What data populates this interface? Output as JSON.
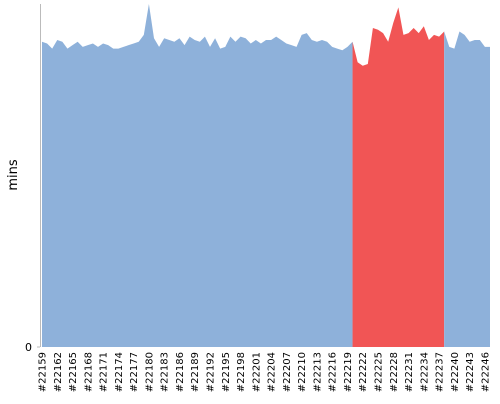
{
  "chart_data": {
    "type": "area",
    "ylabel": "mins",
    "categories": [
      "#22159",
      null,
      null,
      "#22162",
      null,
      null,
      "#22165",
      null,
      null,
      "#22168",
      null,
      null,
      "#22171",
      null,
      null,
      "#22174",
      null,
      null,
      "#22177",
      null,
      null,
      "#22180",
      null,
      null,
      "#22183",
      null,
      null,
      "#22186",
      null,
      null,
      "#22189",
      null,
      null,
      "#22192",
      null,
      null,
      "#22195",
      null,
      null,
      "#22198",
      null,
      null,
      "#22201",
      null,
      null,
      "#22204",
      null,
      null,
      "#22207",
      null,
      null,
      "#22210",
      null,
      null,
      "#22213",
      null,
      null,
      "#22216",
      null,
      null,
      "#22219",
      null,
      null,
      "#22222",
      null,
      null,
      "#22225",
      null,
      null,
      "#22228",
      null,
      null,
      "#22231",
      null,
      null,
      "#22234",
      null,
      null,
      "#22237",
      null,
      null,
      "#22240",
      null,
      null,
      "#22243",
      null,
      null,
      "#22246",
      null
    ],
    "values": [
      89,
      88.5,
      87,
      89.5,
      89,
      87,
      88,
      89,
      87.5,
      88,
      88.5,
      87.5,
      88.5,
      88,
      87,
      87,
      87.5,
      88,
      88.5,
      89,
      91,
      100,
      90,
      87.5,
      90,
      89.5,
      89,
      90,
      88,
      90.5,
      89.5,
      89,
      90.5,
      87.5,
      90,
      87,
      87.5,
      90.5,
      89,
      90.5,
      90,
      88.5,
      89.5,
      88.5,
      89.5,
      89.5,
      90.5,
      89.5,
      88.5,
      88,
      87.5,
      91,
      91.5,
      89.5,
      89,
      89.5,
      89,
      87.5,
      87,
      86.5,
      87.5,
      89,
      83,
      82,
      82.5,
      93,
      92.5,
      91.5,
      89,
      94.5,
      99,
      91,
      91.5,
      93,
      91.5,
      93.5,
      89.5,
      91,
      90.5,
      92,
      87.5,
      87,
      92,
      91,
      89,
      89.5,
      89.5,
      87.5,
      87.5
    ],
    "colors": [
      "#8eb1da",
      "#8eb1da",
      "#8eb1da",
      "#8eb1da",
      "#8eb1da",
      "#8eb1da",
      "#8eb1da",
      "#8eb1da",
      "#8eb1da",
      "#8eb1da",
      "#8eb1da",
      "#8eb1da",
      "#8eb1da",
      "#8eb1da",
      "#8eb1da",
      "#8eb1da",
      "#8eb1da",
      "#8eb1da",
      "#8eb1da",
      "#8eb1da",
      "#8eb1da",
      "#8eb1da",
      "#8eb1da",
      "#8eb1da",
      "#8eb1da",
      "#8eb1da",
      "#8eb1da",
      "#8eb1da",
      "#8eb1da",
      "#8eb1da",
      "#8eb1da",
      "#8eb1da",
      "#8eb1da",
      "#8eb1da",
      "#8eb1da",
      "#8eb1da",
      "#8eb1da",
      "#8eb1da",
      "#8eb1da",
      "#8eb1da",
      "#8eb1da",
      "#8eb1da",
      "#8eb1da",
      "#8eb1da",
      "#8eb1da",
      "#8eb1da",
      "#8eb1da",
      "#8eb1da",
      "#8eb1da",
      "#8eb1da",
      "#8eb1da",
      "#8eb1da",
      "#8eb1da",
      "#8eb1da",
      "#8eb1da",
      "#8eb1da",
      "#8eb1da",
      "#8eb1da",
      "#8eb1da",
      "#8eb1da",
      "#8eb1da",
      "#8eb1da",
      "#f15555",
      "#f15555",
      "#f15555",
      "#f15555",
      "#f15555",
      "#f15555",
      "#f15555",
      "#f15555",
      "#f15555",
      "#f15555",
      "#f15555",
      "#f15555",
      "#f15555",
      "#f15555",
      "#f15555",
      "#f15555",
      "#f15555",
      "#f15555",
      "#8eb1da",
      "#8eb1da",
      "#8eb1da",
      "#8eb1da",
      "#8eb1da",
      "#8eb1da",
      "#8eb1da",
      "#8eb1da",
      "#8eb1da"
    ],
    "ylim": [
      0,
      100
    ],
    "yticks": [
      0
    ]
  }
}
